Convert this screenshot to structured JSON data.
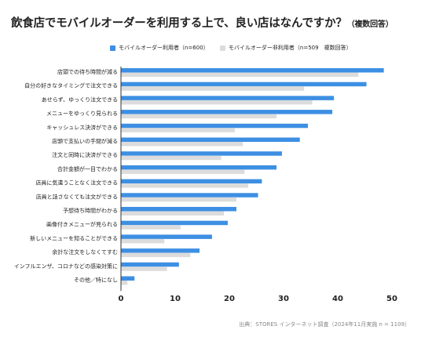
{
  "title": "飲食店でモバイルオーダーを利用する上で、良い店はなんですか？",
  "subtitle": "（複数回答）",
  "source": "出典：STORES インターネット調査（2024年11月実施 n = 1109）",
  "chart_data": {
    "type": "bar",
    "orientation": "horizontal",
    "categories": [
      "店頭での待ち時間が減る",
      "自分の好きなタイミングで注文できる",
      "あせらず、ゆっくり注文できる",
      "メニューをゆっくり見られる",
      "キャッシュレス決済ができる",
      "店頭で支払いの手間が減る",
      "注文と同時に決済ができる",
      "合計金額が一目でわかる",
      "店員に気遣うことなく注文できる",
      "店員と話さなくても注文ができる",
      "予想待ち時間がわかる",
      "画像付きメニューが見られる",
      "新しいメニューを知ることができる",
      "余計な注文をしなくてすむ",
      "インフルエンザ、コロナなどの感染対策に",
      "その他／特になし"
    ],
    "series": [
      {
        "name": "モバイルオーダー利用者（n=600）",
        "color": "#3d8fe3",
        "values": [
          48.5,
          45.3,
          39.3,
          39.0,
          34.5,
          33.0,
          29.7,
          28.7,
          26.0,
          25.3,
          21.3,
          19.7,
          16.8,
          14.5,
          10.7,
          2.5
        ]
      },
      {
        "name": "モバイルオーダー非利用者（n=509　複数回答）",
        "color": "#dcdcdc",
        "values": [
          43.8,
          33.8,
          35.3,
          28.7,
          21.0,
          22.5,
          18.5,
          22.8,
          23.5,
          21.3,
          19.0,
          11.0,
          8.0,
          12.8,
          8.5,
          1.2
        ]
      }
    ],
    "xlim": [
      0,
      50
    ],
    "xticks": [
      0,
      10,
      20,
      30,
      40,
      50
    ],
    "grid": false,
    "legend_position": "top"
  }
}
